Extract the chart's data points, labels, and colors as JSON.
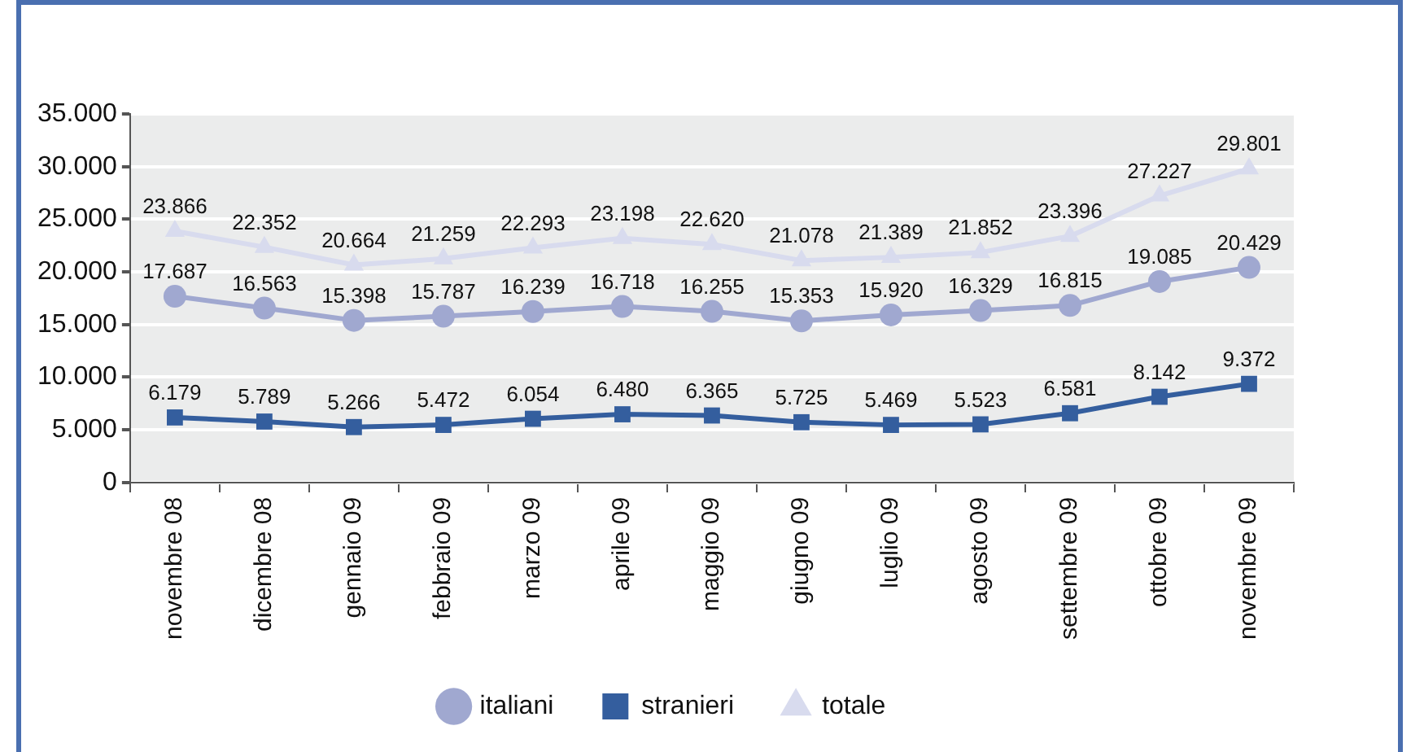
{
  "chart_data": {
    "type": "line",
    "categories": [
      "novembre 08",
      "dicembre 08",
      "gennaio 09",
      "febbraio 09",
      "marzo 09",
      "aprile 09",
      "maggio 09",
      "giugno 09",
      "luglio 09",
      "agosto 09",
      "settembre 09",
      "ottobre 09",
      "novembre 09"
    ],
    "series": [
      {
        "name": "italiani",
        "color": "#a0a8d0",
        "marker": "circle",
        "values": [
          17687,
          16563,
          15398,
          15787,
          16239,
          16718,
          16255,
          15353,
          15920,
          16329,
          16815,
          19085,
          20429
        ],
        "value_labels": [
          "17.687",
          "16.563",
          "15.398",
          "15.787",
          "16.239",
          "16.718",
          "16.255",
          "15.353",
          "15.920",
          "16.329",
          "16.815",
          "19.085",
          "20.429"
        ]
      },
      {
        "name": "stranieri",
        "color": "#345e9e",
        "marker": "square",
        "values": [
          6179,
          5789,
          5266,
          5472,
          6054,
          6480,
          6365,
          5725,
          5469,
          5523,
          6581,
          8142,
          9372
        ],
        "value_labels": [
          "6.179",
          "5.789",
          "5.266",
          "5.472",
          "6.054",
          "6.480",
          "6.365",
          "5.725",
          "5.469",
          "5.523",
          "6.581",
          "8.142",
          "9.372"
        ]
      },
      {
        "name": "totale",
        "color": "#d8dbee",
        "marker": "triangle",
        "values": [
          23866,
          22352,
          20664,
          21259,
          22293,
          23198,
          22620,
          21078,
          21389,
          21852,
          23396,
          27227,
          29801
        ],
        "value_labels": [
          "23.866",
          "22.352",
          "20.664",
          "21.259",
          "22.293",
          "23.198",
          "22.620",
          "21.078",
          "21.389",
          "21.852",
          "23.396",
          "27.227",
          "29.801"
        ]
      }
    ],
    "ylim": [
      0,
      35000
    ],
    "yticks": [
      0,
      {
        "value": 5000,
        "label": "5.000"
      },
      {
        "value": 10000,
        "label": "10.000"
      },
      {
        "value": 15000,
        "label": "15.000"
      },
      {
        "value": 20000,
        "label": "20.000"
      },
      {
        "value": 25000,
        "label": "25.000"
      },
      {
        "value": 30000,
        "label": "30.000"
      },
      {
        "value": 35000,
        "label": "35.000"
      }
    ],
    "grid": "y",
    "legend": "bottom",
    "line_style": "solid"
  }
}
